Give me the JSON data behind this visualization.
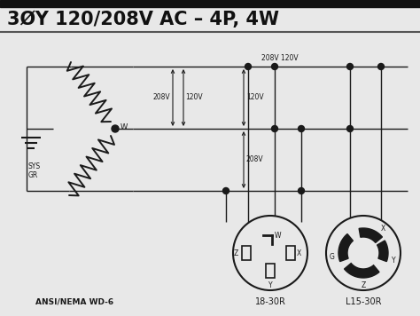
{
  "title": "3ØY 120/208V AC – 4P, 4W",
  "title_fontsize": 15,
  "bg_color": "#e8e8e8",
  "line_color": "#1a1a1a",
  "text_color": "#111111",
  "bottom_labels": [
    "ANSI/NEMA WD-6",
    "18-30R",
    "L15-30R"
  ],
  "figsize": [
    4.74,
    3.56
  ],
  "dpi": 100
}
